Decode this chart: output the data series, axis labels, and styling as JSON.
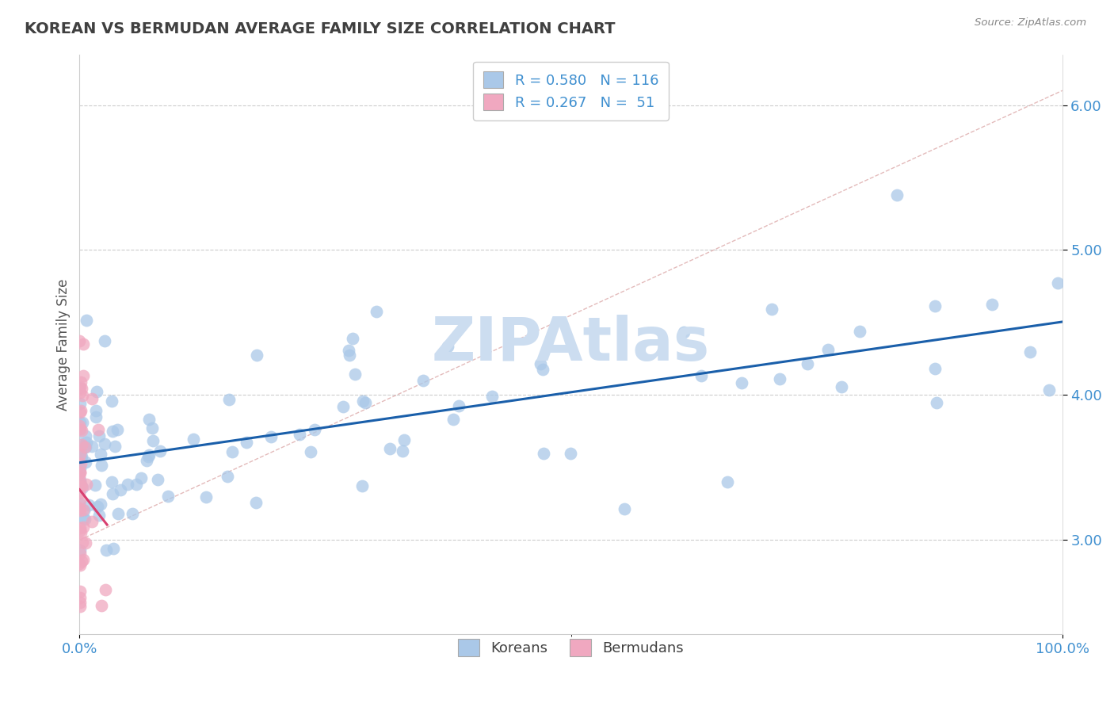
{
  "title": "KOREAN VS BERMUDAN AVERAGE FAMILY SIZE CORRELATION CHART",
  "source_text": "Source: ZipAtlas.com",
  "ylabel": "Average Family Size",
  "xlim": [
    0.0,
    1.0
  ],
  "ylim": [
    2.35,
    6.35
  ],
  "yticks_right": [
    3.0,
    4.0,
    5.0,
    6.0
  ],
  "legend_korean_R": "0.580",
  "legend_korean_N": "116",
  "legend_bermudan_R": "0.267",
  "legend_bermudan_N": "51",
  "korean_color": "#aac8e8",
  "bermudan_color": "#f0a8c0",
  "korean_line_color": "#1a5faa",
  "bermudan_line_color": "#d84070",
  "watermark_text": "ZIPAtlas",
  "watermark_color": "#ccddf0",
  "background_color": "#ffffff",
  "grid_color": "#cccccc",
  "title_color": "#404040",
  "axis_label_color": "#555555",
  "tick_color": "#4090d0",
  "legend_text_color": "#4090d0"
}
